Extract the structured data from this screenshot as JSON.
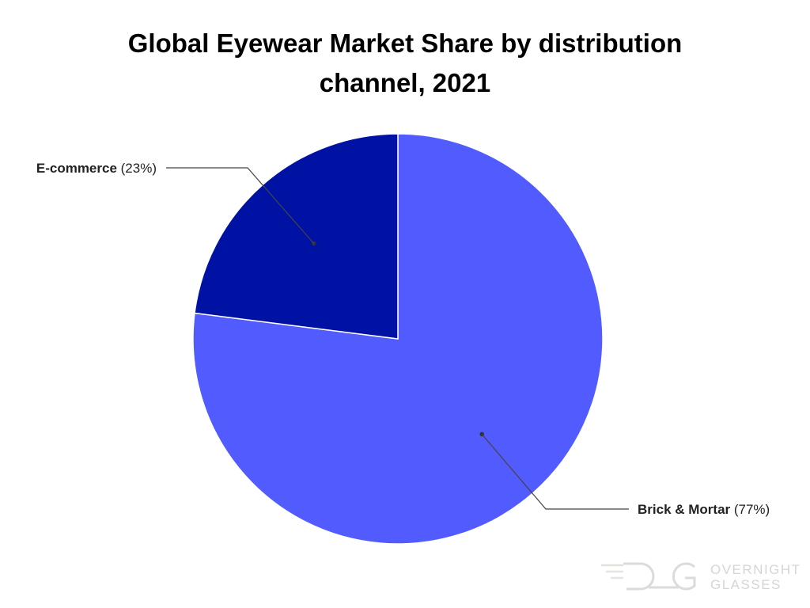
{
  "chart_data": {
    "type": "pie",
    "title": "Global Eyewear Market Share by distribution channel, 2021",
    "slices": [
      {
        "name": "Brick & Mortar",
        "value": 77,
        "pct_label": "(77%)",
        "color": "#515bfe"
      },
      {
        "name": "E-commerce",
        "value": 23,
        "pct_label": "(23%)",
        "color": "#0012a3"
      }
    ],
    "start_angle_deg": 0,
    "direction": "clockwise",
    "legend": "none",
    "slice_border_color": "#ffffff"
  },
  "watermark": {
    "icon": "overnight-glasses-logo-icon",
    "line1": "OVERNIGHT",
    "line2": "GLASSES"
  }
}
